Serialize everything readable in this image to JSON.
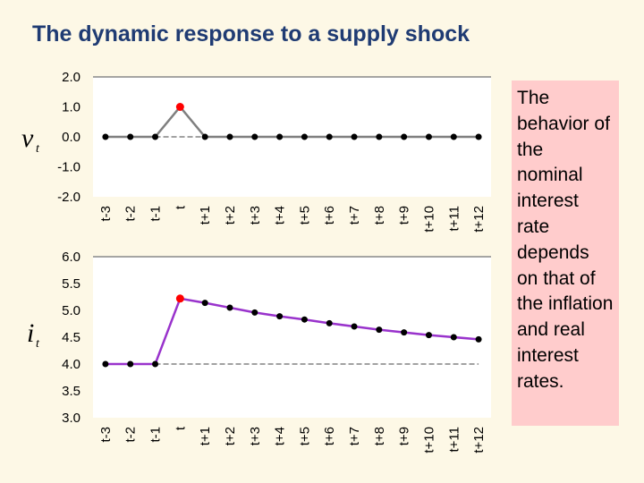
{
  "title": "The dynamic response to a supply shock",
  "note": "The behavior of the nominal interest rate depends on that of the inflation and real interest rates.",
  "colors": {
    "background": "#fdf8e6",
    "plot_background": "#ffffff",
    "shock_line": "#7f7f7f",
    "interest_line": "#9933cc",
    "markers": "#000000",
    "highlight_marker": "#ff0000",
    "note_background": "#ffcccc",
    "title": "#1f3b73"
  },
  "chart_data": [
    {
      "type": "line",
      "ylabel": "v",
      "ylabel_sub": "t",
      "categories": [
        "t-3",
        "t-2",
        "t-1",
        "t",
        "t+1",
        "t+2",
        "t+3",
        "t+4",
        "t+5",
        "t+6",
        "t+7",
        "t+8",
        "t+9",
        "t+10",
        "t+11",
        "t+12"
      ],
      "values": [
        0,
        0,
        0,
        1,
        0,
        0,
        0,
        0,
        0,
        0,
        0,
        0,
        0,
        0,
        0,
        0
      ],
      "highlight_index": 3,
      "baseline": 0,
      "ylim": [
        -2,
        2
      ],
      "yticks": [
        "-2.0",
        "-1.0",
        "0.0",
        "1.0",
        "2.0"
      ],
      "ytick_values": [
        -2,
        -1,
        0,
        1,
        2
      ],
      "grid": false
    },
    {
      "type": "line",
      "ylabel": "i",
      "ylabel_sub": "t",
      "categories": [
        "t-3",
        "t-2",
        "t-1",
        "t",
        "t+1",
        "t+2",
        "t+3",
        "t+4",
        "t+5",
        "t+6",
        "t+7",
        "t+8",
        "t+9",
        "t+10",
        "t+11",
        "t+12"
      ],
      "values": [
        4.0,
        4.0,
        4.0,
        5.22,
        5.14,
        5.05,
        4.96,
        4.89,
        4.83,
        4.76,
        4.7,
        4.64,
        4.59,
        4.54,
        4.5,
        4.46
      ],
      "highlight_index": 3,
      "baseline": 4.0,
      "ylim": [
        3.0,
        6.0
      ],
      "yticks": [
        "3.0",
        "3.5",
        "4.0",
        "4.5",
        "5.0",
        "5.5",
        "6.0"
      ],
      "ytick_values": [
        3.0,
        3.5,
        4.0,
        4.5,
        5.0,
        5.5,
        6.0
      ],
      "grid": false
    }
  ]
}
